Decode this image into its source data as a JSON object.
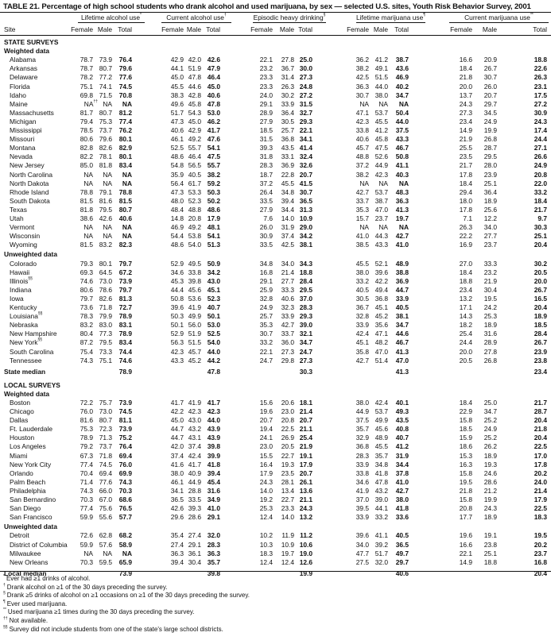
{
  "title": "TABLE 21. Percentage of high school students who drank alcohol and used marijuana, by sex — selected U.S. sites, Youth Risk Behavior Survey, 2001",
  "site_header": "Site",
  "groups": [
    {
      "label": "Lifetime alcohol use",
      "mark": "*"
    },
    {
      "label": "Current alcohol use",
      "mark": "†"
    },
    {
      "label": "Episodic heavy drinking",
      "mark": "§"
    },
    {
      "label": "Lifetime marijuana use",
      "mark": "¶"
    },
    {
      "label": "Current marijuana use",
      "mark": "**"
    }
  ],
  "subcolumns": [
    "Female",
    "Male",
    "Total"
  ],
  "body": [
    {
      "type": "section",
      "label": "STATE SURVEYS"
    },
    {
      "type": "subsection",
      "label": "Weighted data"
    },
    {
      "type": "row",
      "site": "Alabama",
      "v": [
        "78.7",
        "73.9",
        "76.4",
        "42.9",
        "42.0",
        "42.6",
        "22.1",
        "27.8",
        "25.0",
        "36.2",
        "41.2",
        "38.7",
        "16.6",
        "20.9",
        "18.8"
      ]
    },
    {
      "type": "row",
      "site": "Arkansas",
      "v": [
        "78.7",
        "80.7",
        "79.6",
        "44.1",
        "51.9",
        "47.9",
        "23.2",
        "36.7",
        "30.0",
        "38.2",
        "49.1",
        "43.6",
        "18.4",
        "26.7",
        "22.6"
      ]
    },
    {
      "type": "row",
      "site": "Delaware",
      "v": [
        "78.2",
        "77.2",
        "77.6",
        "45.0",
        "47.8",
        "46.4",
        "23.3",
        "31.4",
        "27.3",
        "42.5",
        "51.5",
        "46.9",
        "21.8",
        "30.7",
        "26.3"
      ]
    },
    {
      "type": "row",
      "site": "Florida",
      "v": [
        "75.1",
        "74.1",
        "74.5",
        "45.5",
        "44.6",
        "45.0",
        "23.3",
        "26.3",
        "24.8",
        "36.3",
        "44.0",
        "40.2",
        "20.0",
        "26.0",
        "23.1"
      ]
    },
    {
      "type": "row",
      "site": "Idaho",
      "v": [
        "69.8",
        "71.5",
        "70.8",
        "38.3",
        "42.8",
        "40.6",
        "24.0",
        "30.2",
        "27.2",
        "30.7",
        "38.0",
        "34.7",
        "13.7",
        "20.7",
        "17.5"
      ]
    },
    {
      "type": "row",
      "site": "Maine",
      "v": [
        "NA",
        "NA",
        "NA",
        "49.6",
        "45.8",
        "47.8",
        "29.1",
        "33.9",
        "31.5",
        "NA",
        "NA",
        "NA",
        "24.3",
        "29.7",
        "27.2"
      ],
      "first_mark": "††"
    },
    {
      "type": "row",
      "site": "Massachusetts",
      "v": [
        "81.7",
        "80.7",
        "81.2",
        "51.7",
        "54.3",
        "53.0",
        "28.9",
        "36.4",
        "32.7",
        "47.1",
        "53.7",
        "50.4",
        "27.3",
        "34.5",
        "30.9"
      ]
    },
    {
      "type": "row",
      "site": "Michigan",
      "v": [
        "79.4",
        "75.3",
        "77.4",
        "47.3",
        "45.0",
        "46.2",
        "27.9",
        "30.5",
        "29.3",
        "42.3",
        "45.5",
        "44.0",
        "23.4",
        "24.9",
        "24.3"
      ]
    },
    {
      "type": "row",
      "site": "Mississippi",
      "v": [
        "78.5",
        "73.7",
        "76.2",
        "40.6",
        "42.9",
        "41.7",
        "18.5",
        "25.7",
        "22.1",
        "33.8",
        "41.2",
        "37.5",
        "14.9",
        "19.9",
        "17.4"
      ]
    },
    {
      "type": "row",
      "site": "Missouri",
      "v": [
        "80.6",
        "79.6",
        "80.1",
        "46.1",
        "49.2",
        "47.6",
        "31.5",
        "36.8",
        "34.1",
        "40.6",
        "45.8",
        "43.3",
        "21.9",
        "26.8",
        "24.4"
      ]
    },
    {
      "type": "row",
      "site": "Montana",
      "v": [
        "82.8",
        "82.6",
        "82.9",
        "52.5",
        "55.7",
        "54.1",
        "39.3",
        "43.5",
        "41.4",
        "45.7",
        "47.5",
        "46.7",
        "25.5",
        "28.7",
        "27.1"
      ]
    },
    {
      "type": "row",
      "site": "Nevada",
      "v": [
        "82.2",
        "78.1",
        "80.1",
        "48.6",
        "46.4",
        "47.5",
        "31.8",
        "33.1",
        "32.4",
        "48.8",
        "52.6",
        "50.8",
        "23.5",
        "29.5",
        "26.6"
      ]
    },
    {
      "type": "row",
      "site": "New Jersey",
      "v": [
        "85.0",
        "81.8",
        "83.4",
        "54.8",
        "56.5",
        "55.7",
        "28.3",
        "36.9",
        "32.6",
        "37.2",
        "44.9",
        "41.1",
        "21.7",
        "28.0",
        "24.9"
      ]
    },
    {
      "type": "row",
      "site": "North Carolina",
      "v": [
        "NA",
        "NA",
        "NA",
        "35.9",
        "40.5",
        "38.2",
        "18.7",
        "22.8",
        "20.7",
        "38.2",
        "42.3",
        "40.3",
        "17.8",
        "23.9",
        "20.8"
      ]
    },
    {
      "type": "row",
      "site": "North Dakota",
      "v": [
        "NA",
        "NA",
        "NA",
        "56.4",
        "61.7",
        "59.2",
        "37.2",
        "45.5",
        "41.5",
        "NA",
        "NA",
        "NA",
        "18.4",
        "25.1",
        "22.0"
      ]
    },
    {
      "type": "row",
      "site": "Rhode Island",
      "v": [
        "78.8",
        "79.1",
        "78.8",
        "47.3",
        "53.3",
        "50.3",
        "26.4",
        "34.8",
        "30.7",
        "42.7",
        "53.7",
        "48.3",
        "29.4",
        "36.4",
        "33.2"
      ]
    },
    {
      "type": "row",
      "site": "South Dakota",
      "v": [
        "81.5",
        "81.6",
        "81.5",
        "48.0",
        "52.3",
        "50.2",
        "33.5",
        "39.4",
        "36.5",
        "33.7",
        "38.7",
        "36.3",
        "18.0",
        "18.9",
        "18.4"
      ]
    },
    {
      "type": "row",
      "site": "Texas",
      "v": [
        "81.8",
        "79.5",
        "80.7",
        "48.4",
        "48.8",
        "48.6",
        "27.9",
        "34.4",
        "31.3",
        "35.3",
        "47.0",
        "41.3",
        "17.8",
        "25.6",
        "21.7"
      ]
    },
    {
      "type": "row",
      "site": "Utah",
      "v": [
        "38.6",
        "42.6",
        "40.6",
        "14.8",
        "20.8",
        "17.9",
        "7.6",
        "14.0",
        "10.9",
        "15.7",
        "23.7",
        "19.7",
        "7.1",
        "12.2",
        "9.7"
      ]
    },
    {
      "type": "row",
      "site": "Vermont",
      "v": [
        "NA",
        "NA",
        "NA",
        "46.9",
        "49.2",
        "48.1",
        "26.0",
        "31.9",
        "29.0",
        "NA",
        "NA",
        "NA",
        "26.3",
        "34.0",
        "30.3"
      ]
    },
    {
      "type": "row",
      "site": "Wisconsin",
      "v": [
        "NA",
        "NA",
        "NA",
        "54.4",
        "53.8",
        "54.1",
        "30.9",
        "37.4",
        "34.2",
        "41.0",
        "44.3",
        "42.7",
        "22.2",
        "27.7",
        "25.1"
      ]
    },
    {
      "type": "row",
      "site": "Wyoming",
      "v": [
        "81.5",
        "83.2",
        "82.3",
        "48.6",
        "54.0",
        "51.3",
        "33.5",
        "42.5",
        "38.1",
        "38.5",
        "43.3",
        "41.0",
        "16.9",
        "23.7",
        "20.4"
      ]
    },
    {
      "type": "subsection",
      "label": "Unweighted data"
    },
    {
      "type": "row",
      "site": "Colorado",
      "v": [
        "79.3",
        "80.1",
        "79.7",
        "52.9",
        "49.5",
        "50.9",
        "34.8",
        "34.0",
        "34.3",
        "45.5",
        "52.1",
        "48.9",
        "27.0",
        "33.3",
        "30.2"
      ]
    },
    {
      "type": "row",
      "site": "Hawaii",
      "v": [
        "69.3",
        "64.5",
        "67.2",
        "34.6",
        "33.8",
        "34.2",
        "16.8",
        "21.4",
        "18.8",
        "38.0",
        "39.6",
        "38.8",
        "18.4",
        "23.2",
        "20.5"
      ]
    },
    {
      "type": "row",
      "site": "Illinois",
      "mark": "§§",
      "v": [
        "74.6",
        "73.0",
        "73.9",
        "45.3",
        "39.8",
        "43.0",
        "29.1",
        "27.7",
        "28.4",
        "33.2",
        "42.2",
        "36.9",
        "18.8",
        "21.9",
        "20.0"
      ]
    },
    {
      "type": "row",
      "site": "Indiana",
      "v": [
        "80.6",
        "78.6",
        "79.7",
        "44.4",
        "45.6",
        "45.1",
        "25.9",
        "33.3",
        "29.5",
        "40.5",
        "49.4",
        "44.7",
        "23.4",
        "30.4",
        "26.7"
      ]
    },
    {
      "type": "row",
      "site": "Iowa",
      "v": [
        "79.7",
        "82.6",
        "81.3",
        "50.8",
        "53.6",
        "52.3",
        "32.8",
        "40.6",
        "37.0",
        "30.5",
        "36.8",
        "33.9",
        "13.2",
        "19.5",
        "16.5"
      ]
    },
    {
      "type": "row",
      "site": "Kentucky",
      "v": [
        "73.6",
        "71.8",
        "72.7",
        "39.6",
        "41.9",
        "40.7",
        "24.9",
        "32.3",
        "28.3",
        "36.7",
        "45.1",
        "40.5",
        "17.1",
        "24.2",
        "20.4"
      ]
    },
    {
      "type": "row",
      "site": "Louisiana",
      "mark": "§§",
      "v": [
        "78.3",
        "79.9",
        "78.9",
        "50.3",
        "49.9",
        "50.1",
        "25.7",
        "33.9",
        "29.3",
        "32.8",
        "45.2",
        "38.1",
        "14.3",
        "25.3",
        "18.9"
      ]
    },
    {
      "type": "row",
      "site": "Nebraska",
      "v": [
        "83.2",
        "83.0",
        "83.1",
        "50.1",
        "56.0",
        "53.0",
        "35.3",
        "42.7",
        "39.0",
        "33.9",
        "35.6",
        "34.7",
        "18.2",
        "18.9",
        "18.5"
      ]
    },
    {
      "type": "row",
      "site": "New Hampshire",
      "v": [
        "80.4",
        "77.3",
        "78.9",
        "52.9",
        "51.9",
        "52.5",
        "30.7",
        "33.7",
        "32.1",
        "42.4",
        "47.1",
        "44.6",
        "25.4",
        "31.6",
        "28.4"
      ]
    },
    {
      "type": "row",
      "site": "New York",
      "mark": "§§",
      "v": [
        "87.2",
        "79.5",
        "83.4",
        "56.3",
        "51.5",
        "54.0",
        "33.2",
        "36.0",
        "34.7",
        "45.1",
        "48.2",
        "46.7",
        "24.4",
        "28.9",
        "26.7"
      ]
    },
    {
      "type": "row",
      "site": "South Carolina",
      "v": [
        "75.4",
        "73.3",
        "74.4",
        "42.3",
        "45.7",
        "44.0",
        "22.1",
        "27.3",
        "24.7",
        "35.8",
        "47.0",
        "41.3",
        "20.0",
        "27.8",
        "23.9"
      ]
    },
    {
      "type": "row",
      "site": "Tennessee",
      "v": [
        "74.3",
        "75.1",
        "74.6",
        "43.3",
        "45.2",
        "44.2",
        "24.7",
        "29.8",
        "27.3",
        "42.7",
        "51.4",
        "47.0",
        "20.5",
        "26.8",
        "23.8"
      ]
    },
    {
      "type": "median",
      "site": "State median",
      "v": [
        "",
        "",
        "78.9",
        "",
        "",
        "47.8",
        "",
        "",
        "30.3",
        "",
        "",
        "41.3",
        "",
        "",
        "23.4"
      ]
    },
    {
      "type": "section",
      "label": "LOCAL SURVEYS"
    },
    {
      "type": "subsection",
      "label": "Weighted data"
    },
    {
      "type": "row",
      "site": "Boston",
      "v": [
        "72.2",
        "75.7",
        "73.9",
        "41.7",
        "41.9",
        "41.7",
        "15.6",
        "20.6",
        "18.1",
        "38.0",
        "42.4",
        "40.1",
        "18.4",
        "25.0",
        "21.7"
      ]
    },
    {
      "type": "row",
      "site": "Chicago",
      "v": [
        "76.0",
        "73.0",
        "74.5",
        "42.2",
        "42.3",
        "42.3",
        "19.6",
        "23.0",
        "21.4",
        "44.9",
        "53.7",
        "49.3",
        "22.9",
        "34.7",
        "28.7"
      ]
    },
    {
      "type": "row",
      "site": "Dallas",
      "v": [
        "81.6",
        "80.7",
        "81.1",
        "45.0",
        "43.0",
        "44.0",
        "20.7",
        "20.8",
        "20.7",
        "37.5",
        "49.9",
        "43.5",
        "15.8",
        "25.2",
        "20.4"
      ]
    },
    {
      "type": "row",
      "site": "Ft. Lauderdale",
      "v": [
        "75.3",
        "72.3",
        "73.9",
        "44.7",
        "43.2",
        "43.9",
        "19.4",
        "22.5",
        "21.1",
        "35.7",
        "45.6",
        "40.8",
        "18.5",
        "24.9",
        "21.8"
      ]
    },
    {
      "type": "row",
      "site": "Houston",
      "v": [
        "78.9",
        "71.3",
        "75.2",
        "44.7",
        "43.1",
        "43.9",
        "24.1",
        "26.9",
        "25.4",
        "32.9",
        "48.9",
        "40.7",
        "15.9",
        "25.2",
        "20.4"
      ]
    },
    {
      "type": "row",
      "site": "Los Angeles",
      "v": [
        "79.2",
        "73.7",
        "76.4",
        "42.0",
        "37.4",
        "39.8",
        "23.0",
        "20.5",
        "21.9",
        "36.8",
        "45.5",
        "41.2",
        "18.6",
        "26.2",
        "22.5"
      ]
    },
    {
      "type": "row",
      "site": "Miami",
      "v": [
        "67.3",
        "71.8",
        "69.4",
        "37.4",
        "42.4",
        "39.9",
        "15.5",
        "22.7",
        "19.1",
        "28.3",
        "35.7",
        "31.9",
        "15.3",
        "18.9",
        "17.0"
      ]
    },
    {
      "type": "row",
      "site": "New York City",
      "v": [
        "77.4",
        "74.5",
        "76.0",
        "41.6",
        "41.7",
        "41.8",
        "16.4",
        "19.3",
        "17.9",
        "33.9",
        "34.8",
        "34.4",
        "16.3",
        "19.3",
        "17.8"
      ]
    },
    {
      "type": "row",
      "site": "Orlando",
      "v": [
        "70.4",
        "69.4",
        "69.9",
        "38.0",
        "40.9",
        "39.4",
        "17.9",
        "23.5",
        "20.7",
        "33.8",
        "41.8",
        "37.8",
        "15.8",
        "24.6",
        "20.2"
      ]
    },
    {
      "type": "row",
      "site": "Palm Beach",
      "v": [
        "71.4",
        "77.6",
        "74.3",
        "46.1",
        "44.9",
        "45.4",
        "24.3",
        "28.1",
        "26.1",
        "34.6",
        "47.8",
        "41.0",
        "19.5",
        "28.6",
        "24.0"
      ]
    },
    {
      "type": "row",
      "site": "Philadelphia",
      "v": [
        "74.3",
        "66.0",
        "70.3",
        "34.1",
        "28.8",
        "31.6",
        "14.0",
        "13.4",
        "13.6",
        "41.9",
        "43.2",
        "42.7",
        "21.8",
        "21.2",
        "21.4"
      ]
    },
    {
      "type": "row",
      "site": "San Bernardino",
      "v": [
        "70.3",
        "67.0",
        "68.6",
        "36.5",
        "33.5",
        "34.9",
        "19.2",
        "22.7",
        "21.1",
        "37.0",
        "39.0",
        "38.0",
        "15.8",
        "19.9",
        "17.9"
      ]
    },
    {
      "type": "row",
      "site": "San Diego",
      "v": [
        "77.4",
        "75.6",
        "76.5",
        "42.6",
        "39.3",
        "41.0",
        "25.3",
        "23.3",
        "24.3",
        "39.5",
        "44.1",
        "41.8",
        "20.8",
        "24.3",
        "22.5"
      ]
    },
    {
      "type": "row",
      "site": "San Francisco",
      "v": [
        "59.9",
        "55.6",
        "57.7",
        "29.6",
        "28.6",
        "29.1",
        "12.4",
        "14.0",
        "13.2",
        "33.9",
        "33.2",
        "33.6",
        "17.7",
        "18.9",
        "18.3"
      ]
    },
    {
      "type": "subsection",
      "label": "Unweighted data"
    },
    {
      "type": "row",
      "site": "Detroit",
      "v": [
        "72.6",
        "62.8",
        "68.2",
        "35.4",
        "27.4",
        "32.0",
        "10.2",
        "11.9",
        "11.2",
        "39.6",
        "41.1",
        "40.5",
        "19.6",
        "19.1",
        "19.5"
      ]
    },
    {
      "type": "row",
      "site": "District of Columbia",
      "v": [
        "59.9",
        "57.6",
        "58.9",
        "27.4",
        "29.1",
        "28.3",
        "10.3",
        "10.9",
        "10.6",
        "34.0",
        "39.2",
        "36.5",
        "16.6",
        "23.8",
        "20.2"
      ]
    },
    {
      "type": "row",
      "site": "Milwaukee",
      "v": [
        "NA",
        "NA",
        "NA",
        "36.3",
        "36.1",
        "36.3",
        "18.3",
        "19.7",
        "19.0",
        "47.7",
        "51.7",
        "49.7",
        "22.1",
        "25.1",
        "23.7"
      ]
    },
    {
      "type": "row",
      "site": "New Orleans",
      "v": [
        "70.3",
        "59.5",
        "65.9",
        "39.4",
        "30.4",
        "35.7",
        "12.4",
        "12.4",
        "12.6",
        "27.5",
        "32.0",
        "29.7",
        "14.9",
        "18.8",
        "16.8"
      ]
    },
    {
      "type": "median",
      "site": "Local median",
      "v": [
        "",
        "",
        "73.9",
        "",
        "",
        "39.8",
        "",
        "",
        "19.9",
        "",
        "",
        "40.6",
        "",
        "",
        "20.4"
      ]
    }
  ],
  "footnotes": [
    {
      "mark": "*",
      "text": "Ever had ≥1 drinks of alcohol."
    },
    {
      "mark": "†",
      "text": "Drank alcohol on ≥1 of the 30 days preceding the survey."
    },
    {
      "mark": "§",
      "text": "Drank ≥5 drinks of alcohol on ≥1 occasions on ≥1 of the 30 days preceding the survey."
    },
    {
      "mark": "¶",
      "text": "Ever used marijuana."
    },
    {
      "mark": "**",
      "text": "Used marijuana ≥1 times during the 30 days preceding the survey."
    },
    {
      "mark": "††",
      "text": "Not available."
    },
    {
      "mark": "§§",
      "text": "Survey did not include students from one of the state's large school districts."
    }
  ]
}
